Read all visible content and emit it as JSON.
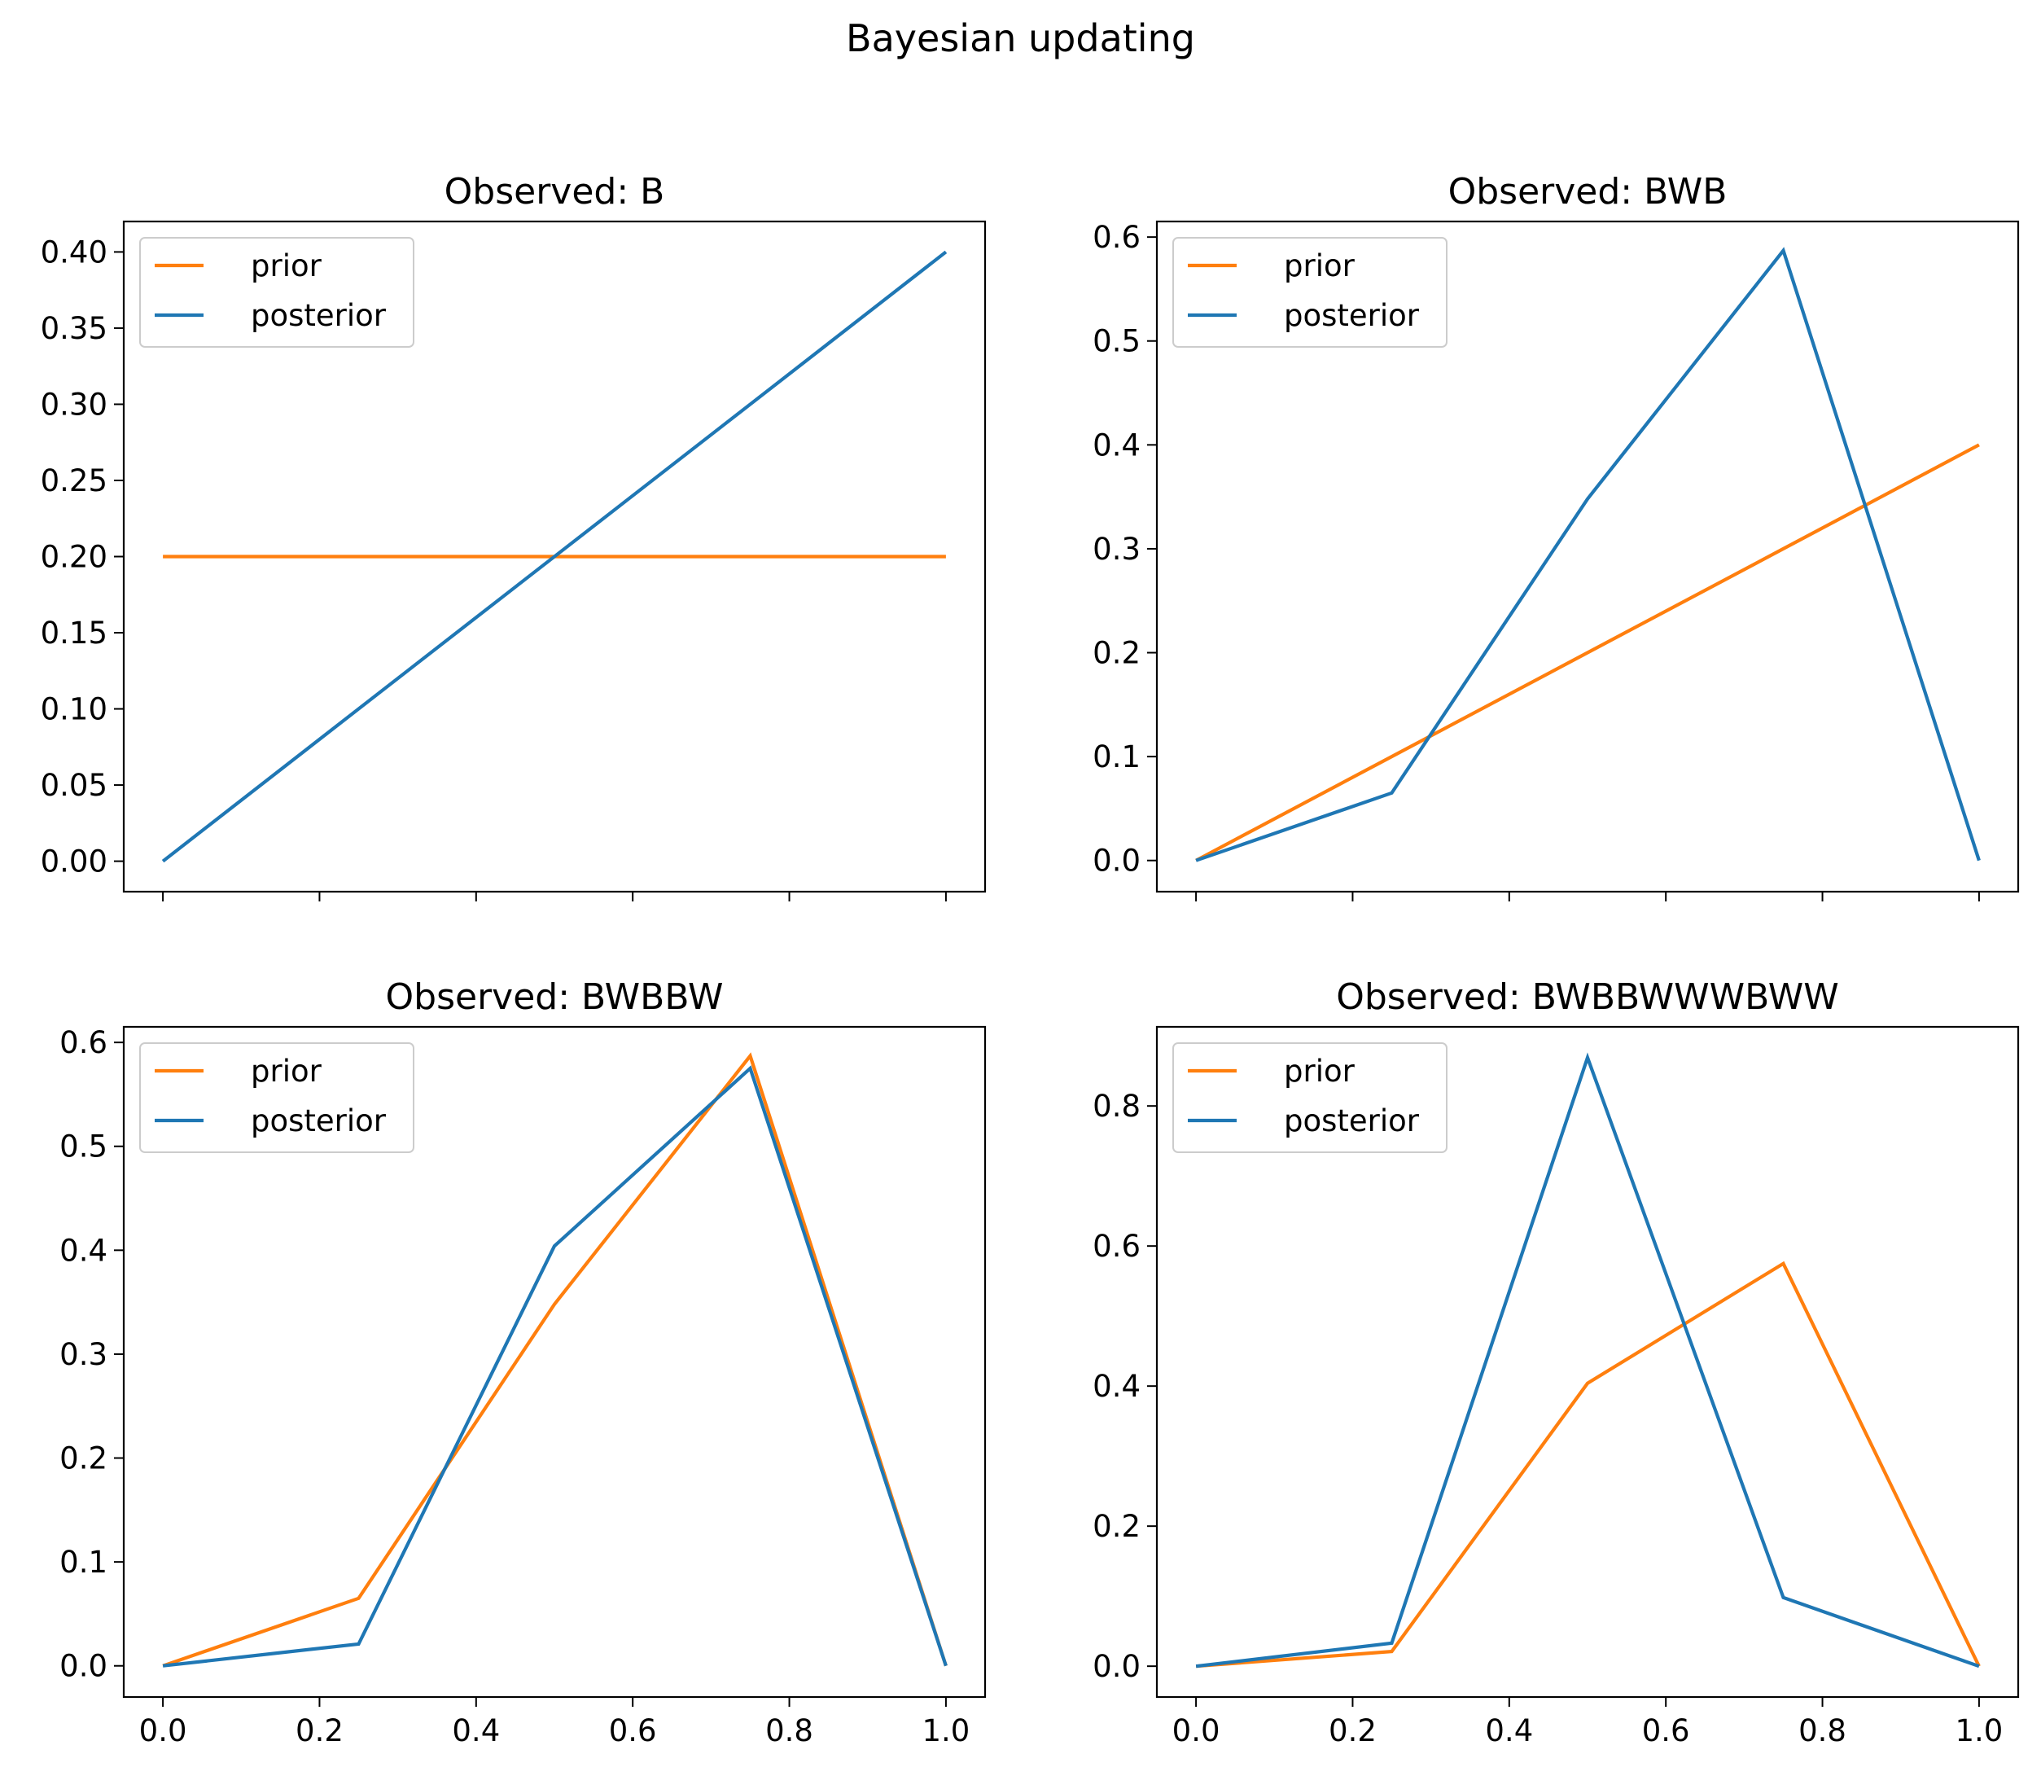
{
  "suptitle": "Bayesian updating",
  "colors": {
    "prior": "#ff7f0e",
    "posterior": "#1f77b4",
    "axes": "#000000",
    "legend_border": "#cccccc"
  },
  "chart_data": [
    {
      "type": "line",
      "title": "Observed: B",
      "x": [
        0.0,
        0.25,
        0.5,
        0.75,
        1.0
      ],
      "series": [
        {
          "name": "prior",
          "values": [
            0.2,
            0.2,
            0.2,
            0.2,
            0.2
          ]
        },
        {
          "name": "posterior",
          "values": [
            0.0,
            0.1,
            0.2,
            0.3,
            0.4
          ]
        }
      ],
      "xlim": [
        -0.05,
        1.05
      ],
      "ylim": [
        -0.02,
        0.42
      ],
      "yticks": [
        "0.00",
        "0.05",
        "0.10",
        "0.15",
        "0.20",
        "0.25",
        "0.30",
        "0.35",
        "0.40"
      ],
      "xticks": [
        "0.0",
        "0.2",
        "0.4",
        "0.6",
        "0.8",
        "1.0"
      ],
      "show_xticklabels": false,
      "legend": "upper-left",
      "grid": false
    },
    {
      "type": "line",
      "title": "Observed: BWB",
      "x": [
        0.0,
        0.25,
        0.5,
        0.75,
        1.0
      ],
      "series": [
        {
          "name": "prior",
          "values": [
            0.0,
            0.1,
            0.2,
            0.3,
            0.4
          ]
        },
        {
          "name": "posterior",
          "values": [
            0.0,
            0.065,
            0.348,
            0.587,
            0.0
          ]
        }
      ],
      "xlim": [
        -0.05,
        1.05
      ],
      "ylim": [
        -0.03,
        0.615
      ],
      "yticks": [
        "0.0",
        "0.1",
        "0.2",
        "0.3",
        "0.4",
        "0.5",
        "0.6"
      ],
      "xticks": [
        "0.0",
        "0.2",
        "0.4",
        "0.6",
        "0.8",
        "1.0"
      ],
      "show_xticklabels": false,
      "legend": "upper-left",
      "grid": false
    },
    {
      "type": "line",
      "title": "Observed: BWBBW",
      "x": [
        0.0,
        0.25,
        0.5,
        0.75,
        1.0
      ],
      "series": [
        {
          "name": "prior",
          "values": [
            0.0,
            0.065,
            0.348,
            0.587,
            0.0
          ]
        },
        {
          "name": "posterior",
          "values": [
            0.0,
            0.021,
            0.404,
            0.575,
            0.0
          ]
        }
      ],
      "xlim": [
        -0.05,
        1.05
      ],
      "ylim": [
        -0.03,
        0.615
      ],
      "yticks": [
        "0.0",
        "0.1",
        "0.2",
        "0.3",
        "0.4",
        "0.5",
        "0.6"
      ],
      "xticks": [
        "0.0",
        "0.2",
        "0.4",
        "0.6",
        "0.8",
        "1.0"
      ],
      "show_xticklabels": true,
      "legend": "upper-left",
      "grid": false
    },
    {
      "type": "line",
      "title": "Observed: BWBBWWWBWW",
      "x": [
        0.0,
        0.25,
        0.5,
        0.75,
        1.0
      ],
      "series": [
        {
          "name": "prior",
          "values": [
            0.0,
            0.021,
            0.404,
            0.575,
            0.0
          ]
        },
        {
          "name": "posterior",
          "values": [
            0.0,
            0.033,
            0.869,
            0.098,
            0.0
          ]
        }
      ],
      "xlim": [
        -0.05,
        1.05
      ],
      "ylim": [
        -0.044,
        0.913
      ],
      "yticks": [
        "0.0",
        "0.2",
        "0.4",
        "0.6",
        "0.8"
      ],
      "xticks": [
        "0.0",
        "0.2",
        "0.4",
        "0.6",
        "0.8",
        "1.0"
      ],
      "show_xticklabels": true,
      "legend": "upper-left",
      "grid": false
    }
  ]
}
